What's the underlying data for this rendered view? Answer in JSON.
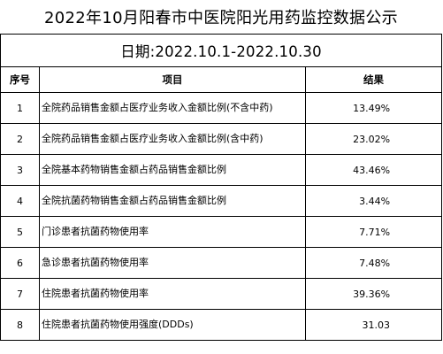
{
  "title": "2022年10月阳春市中医院阳光用药监控数据公示",
  "date_range": "日期:2022.10.1-2022.10.30",
  "headers": {
    "no": "序号",
    "item": "项目",
    "result": "结果"
  },
  "rows": [
    {
      "no": "1",
      "item": "全院药品销售金额占医疗业务收入金额比例(不含中药)",
      "result": "13.49%"
    },
    {
      "no": "2",
      "item": "全院药品销售金额占医疗业务收入金额比例(含中药)",
      "result": "23.02%"
    },
    {
      "no": "3",
      "item": "全院基本药物销售金额占药品销售金额比例",
      "result": "43.46%"
    },
    {
      "no": "4",
      "item": "全院抗菌药物销售金额占药品销售金额比例",
      "result": "3.44%"
    },
    {
      "no": "5",
      "item": "门诊患者抗菌药物使用率",
      "result": "7.71%"
    },
    {
      "no": "6",
      "item": "急诊患者抗菌药物使用率",
      "result": "7.48%"
    },
    {
      "no": "7",
      "item": "住院患者抗菌药物使用率",
      "result": "39.36%"
    },
    {
      "no": "8",
      "item": "住院患者抗菌药物使用强度(DDDs)",
      "result": "31.03"
    }
  ]
}
